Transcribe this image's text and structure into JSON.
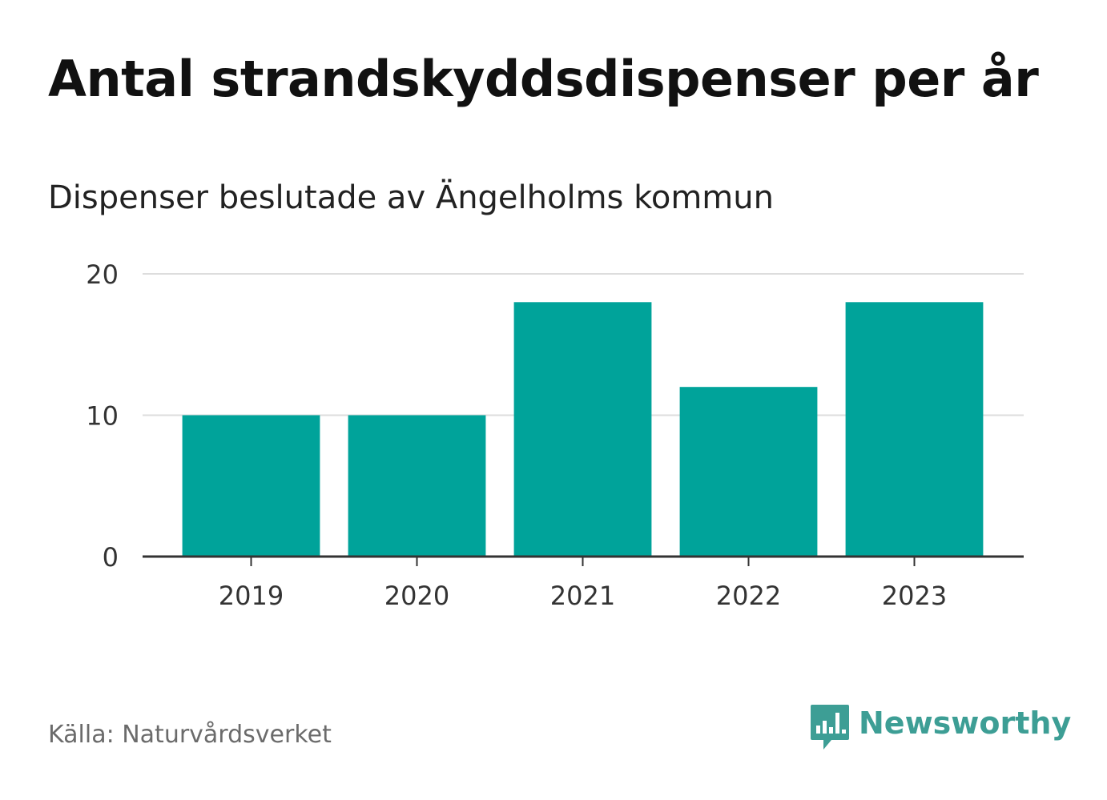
{
  "chart_data": {
    "type": "bar",
    "title": "Antal strandskyddsdispenser per år",
    "subtitle": "Dispenser beslutade av Ängelholms kommun",
    "categories": [
      "2019",
      "2020",
      "2021",
      "2022",
      "2023"
    ],
    "values": [
      10,
      10,
      18,
      12,
      18
    ],
    "yticks": [
      "0",
      "10",
      "20"
    ],
    "ylim": [
      0,
      20
    ],
    "xlabel": "",
    "ylabel": "",
    "grid": true,
    "bar_color": "#00a39a"
  },
  "footer": {
    "source": "Källa: Naturvårdsverket",
    "brand": "Newsworthy",
    "brand_color": "#3d9e95"
  }
}
